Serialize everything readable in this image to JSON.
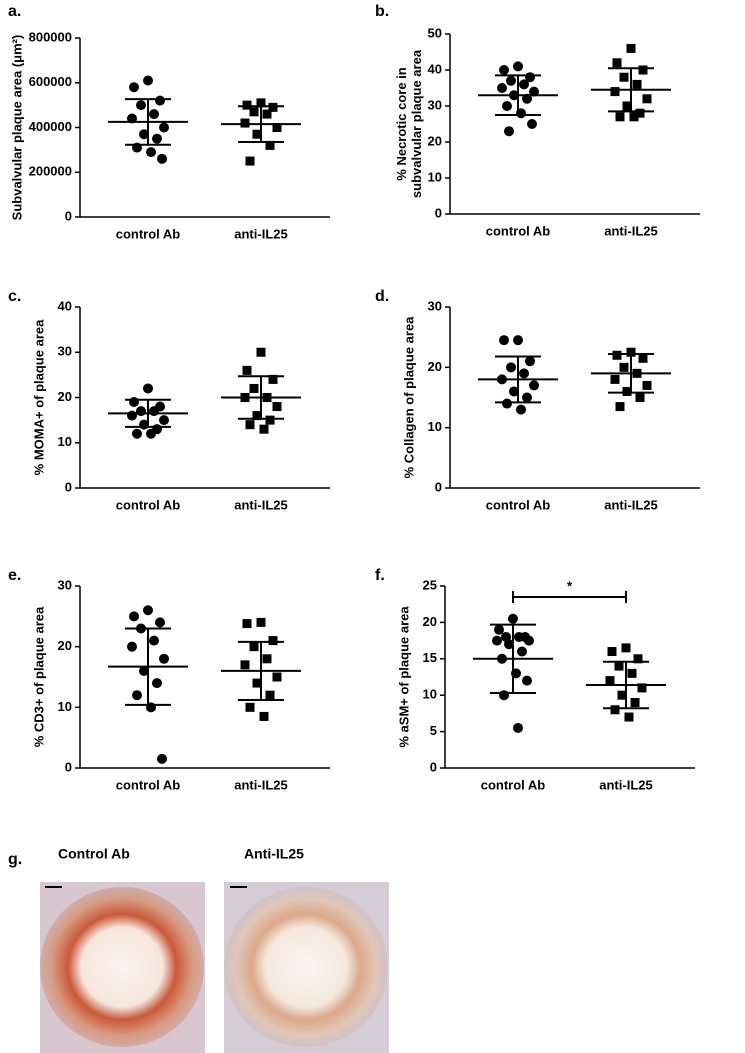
{
  "chart_data": [
    {
      "type": "scatter",
      "panel": "a.",
      "ylabel": "Subvalvular plaque area (μm²)",
      "categories": [
        "control Ab",
        "anti-IL25"
      ],
      "ylim": [
        0,
        800000
      ],
      "yticks": [
        0,
        200000,
        400000,
        600000,
        800000
      ],
      "series": [
        {
          "marker": "circle",
          "color": "#000000",
          "values": [
            610000,
            580000,
            520000,
            500000,
            460000,
            440000,
            400000,
            370000,
            350000,
            310000,
            290000,
            260000
          ],
          "mean": 425000,
          "sd": 102000
        },
        {
          "marker": "square",
          "color": "#000000",
          "values": [
            510000,
            500000,
            490000,
            470000,
            460000,
            420000,
            400000,
            370000,
            320000,
            250000
          ],
          "mean": 415000,
          "sd": 80000
        }
      ]
    },
    {
      "type": "scatter",
      "panel": "b.",
      "ylabel": [
        "% Necrotic core in",
        "subvalvular plaque area"
      ],
      "categories": [
        "control Ab",
        "anti-IL25"
      ],
      "ylim": [
        0,
        50
      ],
      "yticks": [
        0,
        10,
        20,
        30,
        40,
        50
      ],
      "series": [
        {
          "marker": "circle",
          "color": "#000000",
          "values": [
            41,
            40,
            38,
            37,
            36,
            35,
            34,
            33,
            32,
            30,
            28,
            25,
            23
          ],
          "mean": 33,
          "sd": 5.5
        },
        {
          "marker": "square",
          "color": "#000000",
          "values": [
            46,
            42,
            40,
            38,
            36,
            34,
            32,
            30,
            28,
            27,
            27
          ],
          "mean": 34.5,
          "sd": 6
        }
      ]
    },
    {
      "type": "scatter",
      "panel": "c.",
      "ylabel": "% MOMA+ of plaque area",
      "categories": [
        "control Ab",
        "anti-IL25"
      ],
      "ylim": [
        0,
        40
      ],
      "yticks": [
        0,
        10,
        20,
        30,
        40
      ],
      "series": [
        {
          "marker": "circle",
          "color": "#000000",
          "values": [
            22,
            19,
            18,
            17,
            17,
            16,
            15,
            14,
            13,
            12,
            12
          ],
          "mean": 16.5,
          "sd": 3
        },
        {
          "marker": "square",
          "color": "#000000",
          "values": [
            30,
            26,
            24,
            22,
            20,
            20,
            18,
            16,
            15,
            14,
            13
          ],
          "mean": 20,
          "sd": 4.7
        }
      ]
    },
    {
      "type": "scatter",
      "panel": "d.",
      "ylabel": "% Collagen of plaque area",
      "categories": [
        "control Ab",
        "anti-IL25"
      ],
      "ylim": [
        0,
        30
      ],
      "yticks": [
        0,
        10,
        20,
        30
      ],
      "series": [
        {
          "marker": "circle",
          "color": "#000000",
          "values": [
            24.5,
            24.5,
            21,
            20,
            19,
            18,
            17,
            16,
            15,
            14,
            13
          ],
          "mean": 18,
          "sd": 3.8
        },
        {
          "marker": "square",
          "color": "#000000",
          "values": [
            22.5,
            22,
            21.5,
            20,
            19,
            18,
            17,
            16,
            15,
            13.5
          ],
          "mean": 19,
          "sd": 3.2
        }
      ]
    },
    {
      "type": "scatter",
      "panel": "e.",
      "ylabel": "% CD3+ of plaque area",
      "categories": [
        "control Ab",
        "anti-IL25"
      ],
      "ylim": [
        0,
        30
      ],
      "yticks": [
        0,
        10,
        20,
        30
      ],
      "series": [
        {
          "marker": "circle",
          "color": "#000000",
          "values": [
            26,
            25,
            24,
            23,
            21,
            20,
            18,
            16,
            14,
            12,
            10,
            1.5
          ],
          "mean": 16.7,
          "sd": 6.3
        },
        {
          "marker": "square",
          "color": "#000000",
          "values": [
            24,
            23.8,
            21,
            20,
            18,
            17,
            15,
            14,
            12,
            10,
            8.5
          ],
          "mean": 16,
          "sd": 4.8
        }
      ]
    },
    {
      "type": "scatter",
      "panel": "f.",
      "ylabel": "% aSM+ of plaque area",
      "categories": [
        "control Ab",
        "anti-IL25"
      ],
      "ylim": [
        0,
        25
      ],
      "yticks": [
        0,
        5,
        10,
        15,
        20,
        25
      ],
      "significance": "*",
      "series": [
        {
          "marker": "circle",
          "color": "#000000",
          "values": [
            20.5,
            19,
            18,
            18,
            18,
            17.5,
            17.5,
            17,
            16,
            15,
            13,
            12,
            10,
            5.5
          ],
          "mean": 15,
          "sd": 4.7
        },
        {
          "marker": "square",
          "color": "#000000",
          "values": [
            16.5,
            16,
            15,
            14,
            13,
            12,
            11,
            10,
            9,
            8,
            7
          ],
          "mean": 11.4,
          "sd": 3.2
        }
      ]
    }
  ],
  "images": {
    "panel": "g.",
    "labels": [
      "Control Ab",
      "Anti-IL25"
    ]
  }
}
